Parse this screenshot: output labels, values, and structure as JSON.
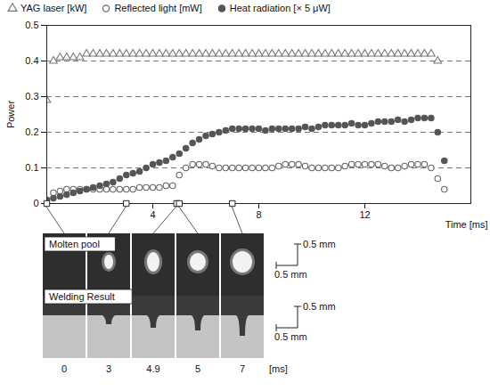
{
  "chart_data": {
    "type": "scatter",
    "x_label": "Time [ms]",
    "y_label": "Power",
    "xlim": [
      0,
      16
    ],
    "xticks": [
      4,
      8,
      12
    ],
    "ylim": [
      0,
      0.5
    ],
    "yticks": [
      0,
      0.1,
      0.2,
      0.3,
      0.4,
      0.5
    ],
    "grid": true,
    "legend": "top",
    "x": [
      0,
      0.25,
      0.5,
      0.75,
      1,
      1.25,
      1.5,
      1.75,
      2,
      2.25,
      2.5,
      2.75,
      3,
      3.25,
      3.5,
      3.75,
      4,
      4.25,
      4.5,
      4.75,
      5,
      5.25,
      5.5,
      5.75,
      6,
      6.25,
      6.5,
      6.75,
      7,
      7.25,
      7.5,
      7.75,
      8,
      8.25,
      8.5,
      8.75,
      9,
      9.25,
      9.5,
      9.75,
      10,
      10.25,
      10.5,
      10.75,
      11,
      11.25,
      11.5,
      11.75,
      12,
      12.25,
      12.5,
      12.75,
      13,
      13.25,
      13.5,
      13.75,
      14,
      14.25,
      14.5,
      14.75,
      15
    ],
    "series": [
      {
        "name": "YAG laser [kW]",
        "color": "#777777",
        "marker": "triangle-open",
        "values": [
          0.29,
          0.4,
          0.41,
          0.41,
          0.41,
          0.41,
          0.42,
          0.42,
          0.42,
          0.42,
          0.42,
          0.42,
          0.42,
          0.42,
          0.42,
          0.42,
          0.42,
          0.42,
          0.42,
          0.42,
          0.42,
          0.42,
          0.42,
          0.42,
          0.42,
          0.42,
          0.42,
          0.42,
          0.42,
          0.42,
          0.42,
          0.42,
          0.42,
          0.42,
          0.42,
          0.42,
          0.42,
          0.42,
          0.42,
          0.42,
          0.42,
          0.42,
          0.42,
          0.42,
          0.42,
          0.42,
          0.42,
          0.42,
          0.42,
          0.42,
          0.42,
          0.42,
          0.42,
          0.42,
          0.42,
          0.42,
          0.42,
          0.42,
          0.42,
          0.4,
          null
        ]
      },
      {
        "name": "Reflected light [mW]",
        "color": "#666666",
        "marker": "circle-open",
        "values": [
          0.01,
          0.03,
          0.035,
          0.04,
          0.04,
          0.04,
          0.04,
          0.04,
          0.04,
          0.04,
          0.04,
          0.04,
          0.04,
          0.04,
          0.045,
          0.045,
          0.045,
          0.045,
          0.05,
          0.05,
          0.08,
          0.1,
          0.11,
          0.11,
          0.11,
          0.105,
          0.1,
          0.1,
          0.1,
          0.1,
          0.1,
          0.1,
          0.1,
          0.1,
          0.1,
          0.105,
          0.11,
          0.11,
          0.11,
          0.105,
          0.1,
          0.1,
          0.1,
          0.1,
          0.1,
          0.105,
          0.11,
          0.11,
          0.11,
          0.11,
          0.11,
          0.105,
          0.1,
          0.1,
          0.105,
          0.11,
          0.11,
          0.11,
          0.1,
          0.07,
          0.04
        ]
      },
      {
        "name": "Heat radiation [× 5 μW]",
        "color": "#555555",
        "marker": "circle",
        "values": [
          0.01,
          0.015,
          0.02,
          0.025,
          0.03,
          0.035,
          0.04,
          0.045,
          0.05,
          0.055,
          0.06,
          0.07,
          0.08,
          0.085,
          0.09,
          0.1,
          0.11,
          0.115,
          0.12,
          0.13,
          0.14,
          0.155,
          0.17,
          0.18,
          0.19,
          0.195,
          0.2,
          0.205,
          0.21,
          0.21,
          0.21,
          0.21,
          0.21,
          0.205,
          0.21,
          0.21,
          0.21,
          0.21,
          0.21,
          0.215,
          0.21,
          0.215,
          0.22,
          0.22,
          0.22,
          0.22,
          0.225,
          0.22,
          0.22,
          0.225,
          0.23,
          0.23,
          0.23,
          0.235,
          0.23,
          0.235,
          0.24,
          0.24,
          0.24,
          0.2,
          0.12
        ]
      }
    ],
    "photos": {
      "times": [
        0,
        3,
        4.9,
        5,
        7
      ],
      "time_unit": "[ms]",
      "rows": [
        "Molten pool",
        "Welding Result"
      ],
      "scale_bar": "0.5 mm"
    }
  }
}
